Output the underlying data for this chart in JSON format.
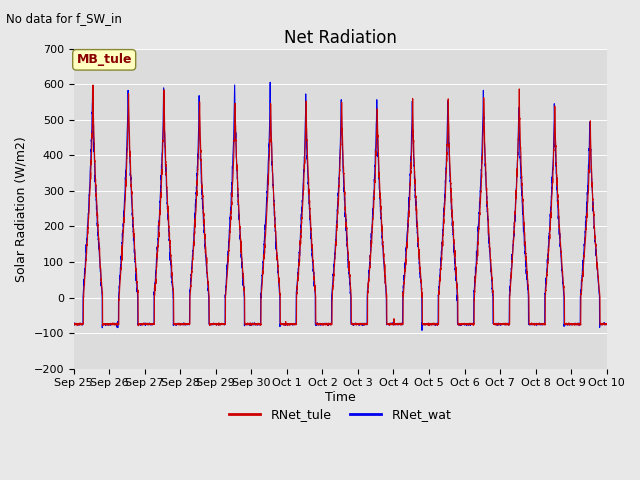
{
  "title": "Net Radiation",
  "subtitle": "No data for f_SW_in",
  "ylabel": "Solar Radiation (W/m2)",
  "xlabel": "Time",
  "ylim": [
    -200,
    700
  ],
  "yticks": [
    -200,
    -100,
    0,
    100,
    200,
    300,
    400,
    500,
    600,
    700
  ],
  "x_tick_labels": [
    "Sep 25",
    "Sep 26",
    "Sep 27",
    "Sep 28",
    "Sep 29",
    "Sep 30",
    "Oct 1",
    "Oct 2",
    "Oct 3",
    "Oct 4",
    "Oct 5",
    "Oct 6",
    "Oct 7",
    "Oct 8",
    "Oct 9",
    "Oct 10"
  ],
  "color_tule": "#cc0000",
  "color_wat": "#0000ee",
  "legend_label_tule": "RNet_tule",
  "legend_label_wat": "RNet_wat",
  "annotation_label": "MB_tule",
  "fig_bg_color": "#e8e8e8",
  "plot_bg_color": "#dcdcdc",
  "night_value": -75,
  "day_peaks_tule": [
    600,
    597,
    597,
    570,
    575,
    570,
    575,
    578,
    570,
    565,
    575,
    580,
    600,
    560,
    497
  ],
  "day_peaks_wat": [
    615,
    610,
    602,
    575,
    615,
    610,
    575,
    578,
    575,
    578,
    578,
    600,
    560,
    560,
    530
  ],
  "n_days": 15,
  "pts_per_day": 288,
  "grid_color": "#ffffff",
  "title_fontsize": 12,
  "tick_fontsize": 8,
  "label_fontsize": 9
}
